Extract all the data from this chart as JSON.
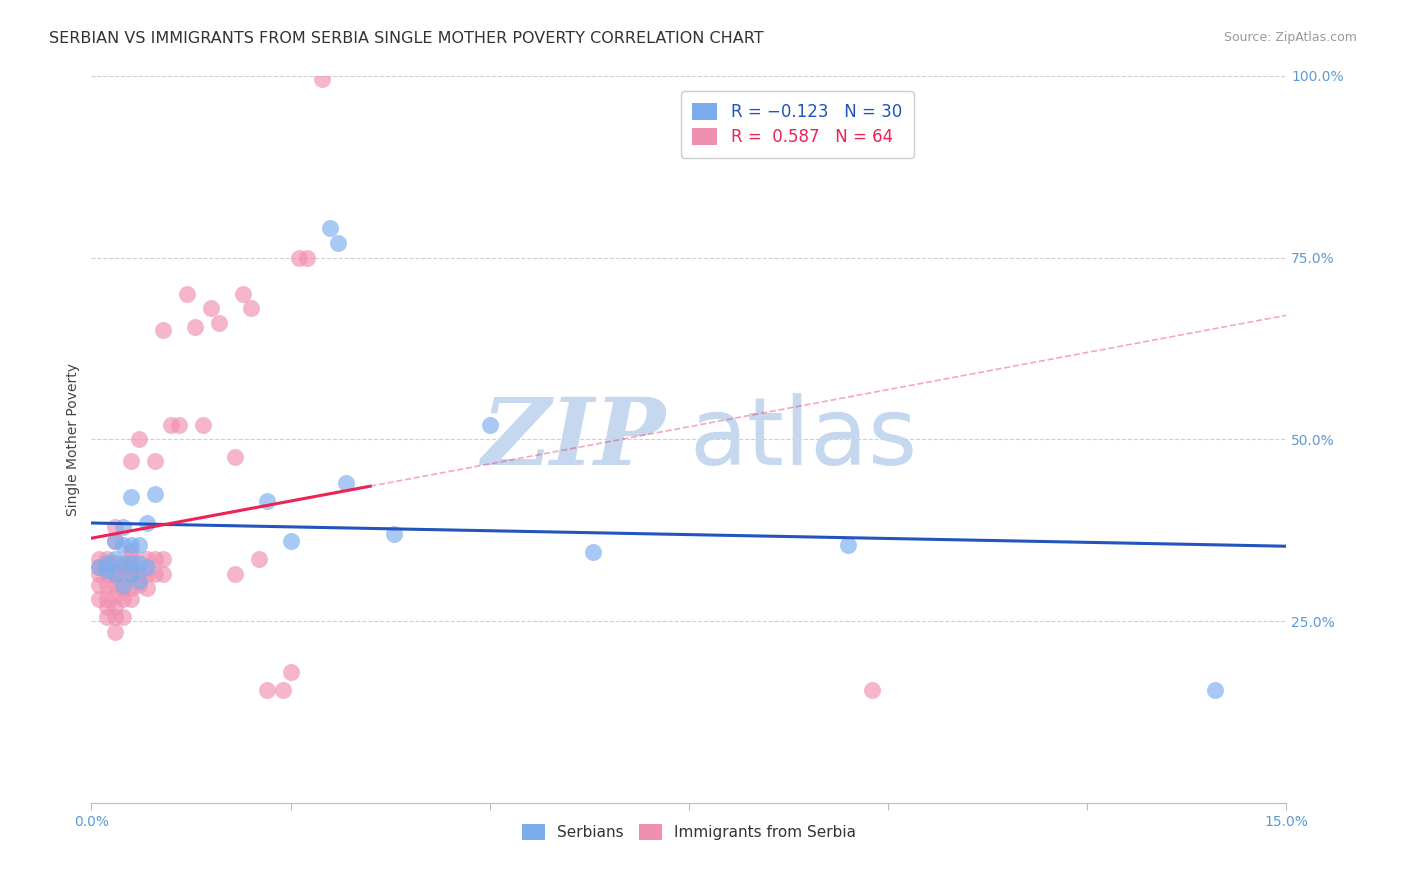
{
  "title": "SERBIAN VS IMMIGRANTS FROM SERBIA SINGLE MOTHER POVERTY CORRELATION CHART",
  "source": "Source: ZipAtlas.com",
  "ylabel": "Single Mother Poverty",
  "xlim": [
    0.0,
    0.15
  ],
  "ylim": [
    0.0,
    1.0
  ],
  "xticks": [
    0.0,
    0.025,
    0.05,
    0.075,
    0.1,
    0.125,
    0.15
  ],
  "xticklabels": [
    "0.0%",
    "",
    "",
    "",
    "",
    "",
    "15.0%"
  ],
  "yticks_right": [
    0.25,
    0.5,
    0.75,
    1.0
  ],
  "yticklabels_right": [
    "25.0%",
    "50.0%",
    "75.0%",
    "100.0%"
  ],
  "color_serbian": "#7aadee",
  "color_immigrant": "#f090b0",
  "color_serbian_line": "#2255bb",
  "color_immigrant_line": "#ee2255",
  "legend_R_serbian": "R = −0.123",
  "legend_N_serbian": "N = 30",
  "legend_R_immigrant": "R =  0.587",
  "legend_N_immigrant": "N = 64",
  "watermark_zip": "ZIP",
  "watermark_atlas": "atlas",
  "watermark_color": "#c5d8f0",
  "title_fontsize": 11.5,
  "axis_label_fontsize": 10,
  "tick_fontsize": 10,
  "serbian_x": [
    0.001,
    0.002,
    0.002,
    0.003,
    0.003,
    0.003,
    0.004,
    0.004,
    0.004,
    0.004,
    0.005,
    0.005,
    0.005,
    0.005,
    0.006,
    0.006,
    0.006,
    0.007,
    0.007,
    0.008,
    0.022,
    0.025,
    0.03,
    0.031,
    0.032,
    0.038,
    0.05,
    0.063,
    0.095,
    0.141
  ],
  "serbian_y": [
    0.325,
    0.32,
    0.33,
    0.315,
    0.335,
    0.36,
    0.3,
    0.33,
    0.355,
    0.38,
    0.315,
    0.33,
    0.355,
    0.42,
    0.305,
    0.33,
    0.355,
    0.325,
    0.385,
    0.425,
    0.415,
    0.36,
    0.79,
    0.77,
    0.44,
    0.37,
    0.52,
    0.345,
    0.355,
    0.155
  ],
  "immigrant_x": [
    0.001,
    0.001,
    0.001,
    0.001,
    0.001,
    0.002,
    0.002,
    0.002,
    0.002,
    0.002,
    0.002,
    0.002,
    0.003,
    0.003,
    0.003,
    0.003,
    0.003,
    0.003,
    0.003,
    0.003,
    0.003,
    0.004,
    0.004,
    0.004,
    0.004,
    0.004,
    0.005,
    0.005,
    0.005,
    0.005,
    0.005,
    0.005,
    0.005,
    0.006,
    0.006,
    0.006,
    0.007,
    0.007,
    0.007,
    0.008,
    0.008,
    0.008,
    0.009,
    0.009,
    0.009,
    0.01,
    0.011,
    0.012,
    0.013,
    0.014,
    0.015,
    0.016,
    0.018,
    0.018,
    0.019,
    0.02,
    0.021,
    0.022,
    0.024,
    0.025,
    0.026,
    0.027,
    0.029,
    0.098
  ],
  "immigrant_y": [
    0.28,
    0.3,
    0.315,
    0.325,
    0.335,
    0.255,
    0.27,
    0.28,
    0.3,
    0.315,
    0.325,
    0.335,
    0.235,
    0.255,
    0.27,
    0.285,
    0.3,
    0.315,
    0.33,
    0.36,
    0.38,
    0.255,
    0.28,
    0.295,
    0.315,
    0.325,
    0.28,
    0.295,
    0.315,
    0.325,
    0.335,
    0.345,
    0.47,
    0.3,
    0.315,
    0.5,
    0.295,
    0.315,
    0.335,
    0.315,
    0.335,
    0.47,
    0.315,
    0.335,
    0.65,
    0.52,
    0.52,
    0.7,
    0.655,
    0.52,
    0.68,
    0.66,
    0.315,
    0.475,
    0.7,
    0.68,
    0.335,
    0.155,
    0.155,
    0.18,
    0.75,
    0.75,
    0.995,
    0.155
  ]
}
